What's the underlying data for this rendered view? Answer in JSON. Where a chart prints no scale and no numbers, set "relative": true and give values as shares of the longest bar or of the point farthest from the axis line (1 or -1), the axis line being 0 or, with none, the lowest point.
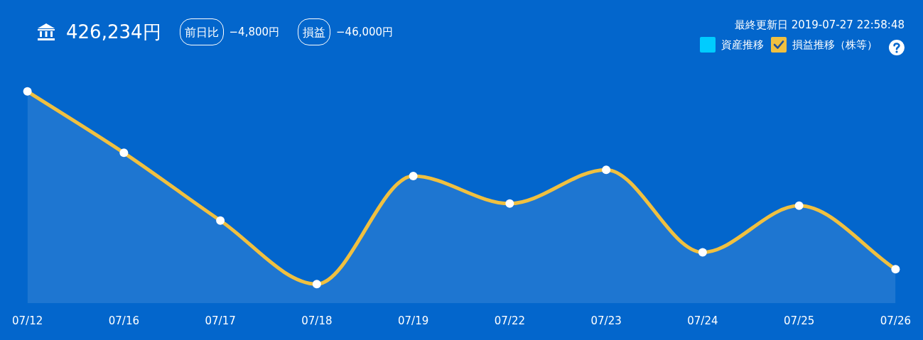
{
  "chart_data": {
    "type": "area",
    "title": "426,234円",
    "annotations": [
      "前日比",
      "−4,800円",
      "損益",
      "−46,000円",
      "最終更新日 2019-07-27 22:58:48"
    ],
    "categories": [
      "07/12",
      "07/16",
      "07/17",
      "07/18",
      "07/19",
      "07/22",
      "07/23",
      "07/24",
      "07/25",
      "07/26"
    ],
    "series": [
      {
        "name": "資産推移",
        "color": "#00ccff",
        "values": [
          null,
          null,
          null,
          null,
          null,
          null,
          null,
          null,
          null,
          null
        ]
      },
      {
        "name": "損益推移（株等）",
        "color": "#f0c040",
        "values": [
          1,
          0.71,
          0.39,
          0.09,
          0.6,
          0.47,
          0.63,
          0.24,
          0.46,
          0.16
        ]
      }
    ],
    "relative": true,
    "legend": "top right",
    "marker": "circle"
  }
}
